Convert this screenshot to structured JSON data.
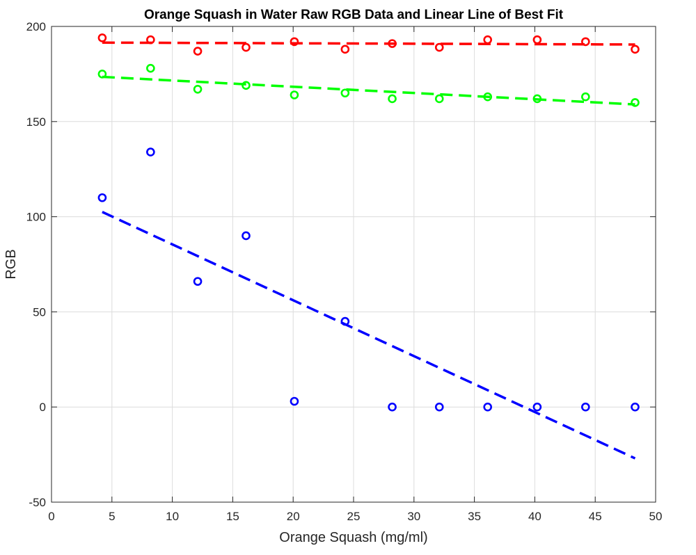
{
  "chart_data": {
    "type": "scatter",
    "title": "Orange Squash in Water Raw RGB Data and Linear Line of Best Fit",
    "xlabel": "Orange Squash (mg/ml)",
    "ylabel": "RGB",
    "xlim": [
      0,
      50
    ],
    "ylim": [
      -50,
      200
    ],
    "xticks": [
      "0",
      "5",
      "10",
      "15",
      "20",
      "25",
      "30",
      "35",
      "40",
      "45",
      "50"
    ],
    "yticks": [
      "-50",
      "0",
      "50",
      "100",
      "150",
      "200"
    ],
    "grid": true,
    "legend": "none",
    "series": [
      {
        "color": "#ff0000",
        "marker": "circle",
        "points": [
          [
            4.2,
            194
          ],
          [
            8.2,
            193
          ],
          [
            12.1,
            187
          ],
          [
            16.1,
            189
          ],
          [
            20.1,
            192
          ],
          [
            24.3,
            188
          ],
          [
            28.2,
            191
          ],
          [
            32.1,
            189
          ],
          [
            36.1,
            193
          ],
          [
            40.2,
            193
          ],
          [
            44.2,
            192
          ],
          [
            48.3,
            188
          ]
        ],
        "fit": {
          "style": "dashed",
          "x": [
            4.2,
            48.3
          ],
          "y": [
            191.5,
            190.5
          ]
        }
      },
      {
        "color": "#00ff00",
        "marker": "circle",
        "points": [
          [
            4.2,
            175
          ],
          [
            8.2,
            178
          ],
          [
            12.1,
            167
          ],
          [
            16.1,
            169
          ],
          [
            20.1,
            164
          ],
          [
            24.3,
            165
          ],
          [
            28.2,
            162
          ],
          [
            32.1,
            162
          ],
          [
            36.1,
            163
          ],
          [
            40.2,
            162
          ],
          [
            44.2,
            163
          ],
          [
            48.3,
            160
          ]
        ],
        "fit": {
          "style": "dashed",
          "x": [
            4.2,
            48.3
          ],
          "y": [
            173.5,
            159
          ]
        }
      },
      {
        "color": "#0000ff",
        "marker": "circle",
        "points": [
          [
            4.2,
            110
          ],
          [
            8.2,
            134
          ],
          [
            12.1,
            66
          ],
          [
            16.1,
            90
          ],
          [
            20.1,
            3
          ],
          [
            24.3,
            45
          ],
          [
            28.2,
            0
          ],
          [
            32.1,
            0
          ],
          [
            36.1,
            0
          ],
          [
            40.2,
            0
          ],
          [
            44.2,
            0
          ],
          [
            48.3,
            0
          ]
        ],
        "fit": {
          "style": "dashed",
          "x": [
            4.2,
            48.3
          ],
          "y": [
            102.5,
            -27
          ]
        }
      }
    ]
  }
}
